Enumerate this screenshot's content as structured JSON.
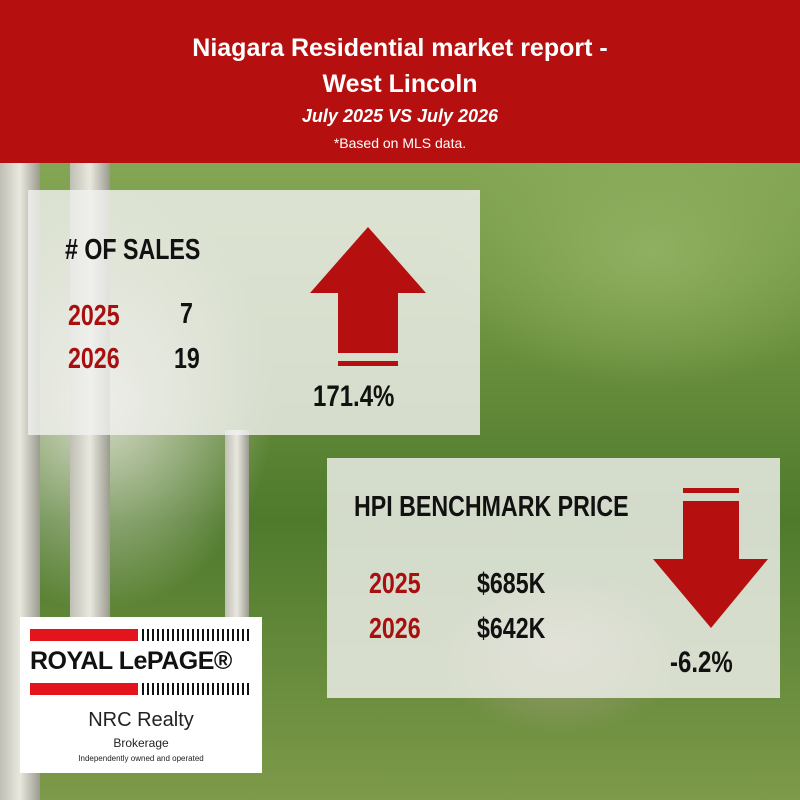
{
  "header": {
    "title_line1": "Niagara Residential market report -",
    "title_line2": "West Lincoln",
    "subtitle": "July 2025 VS July 2026",
    "note": "*Based on MLS data."
  },
  "sales": {
    "heading": "# OF SALES",
    "rows": [
      {
        "year": "2025",
        "value": 7
      },
      {
        "year": "2026",
        "value": 19
      }
    ],
    "change": "171.4%"
  },
  "hpi": {
    "heading": "HPI BENCHMARK PRICE",
    "rows": [
      {
        "year": "2025",
        "value": "$685K"
      },
      {
        "year": "2026",
        "value": "$642K"
      }
    ],
    "change": "-6.2%"
  },
  "logo": {
    "brand": "ROYAL LePAGE®",
    "company": "NRC Realty",
    "type": "Brokerage",
    "tagline": "Independently owned and operated"
  }
}
